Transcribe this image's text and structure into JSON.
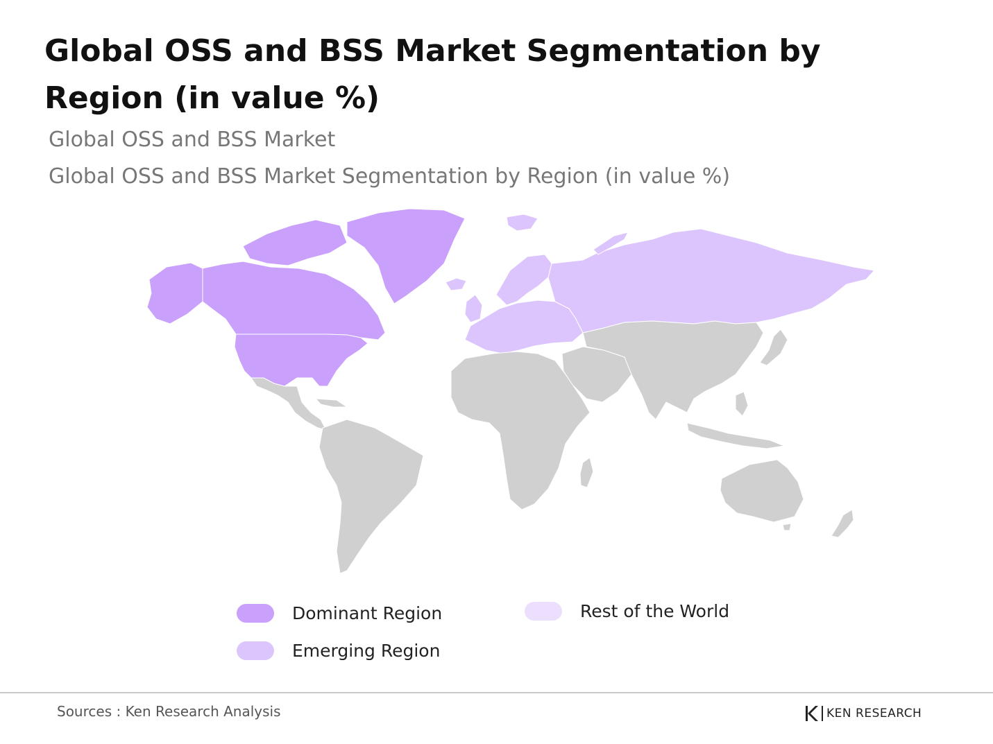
{
  "title": "Global OSS and BSS Market Segmentation by Region (in value %)",
  "subtitle_1": "Global OSS and BSS Market",
  "subtitle_2": "Global OSS and BSS Market Segmentation by Region (in value %)",
  "map": {
    "regions": [
      {
        "name": "North America",
        "category": "dominant"
      },
      {
        "name": "Europe",
        "category": "emerging"
      },
      {
        "name": "Russia and Central Asia",
        "category": "emerging"
      },
      {
        "name": "Latin America",
        "category": "other"
      },
      {
        "name": "Africa",
        "category": "other"
      },
      {
        "name": "Middle East",
        "category": "other"
      },
      {
        "name": "Asia Pacific",
        "category": "other"
      },
      {
        "name": "Oceania",
        "category": "other"
      }
    ],
    "colors": {
      "dominant": "#c9a0fb",
      "emerging": "#dcc5fc",
      "rest": "#ecdffd",
      "other": "#d0d0d0",
      "border": "#ffffff"
    }
  },
  "legend": {
    "dominant_label": "Dominant Region",
    "emerging_label": "Emerging Region",
    "rest_label": "Rest of the World"
  },
  "footer": {
    "source": "Sources : Ken Research Analysis",
    "brand": "KEN RESEARCH"
  }
}
